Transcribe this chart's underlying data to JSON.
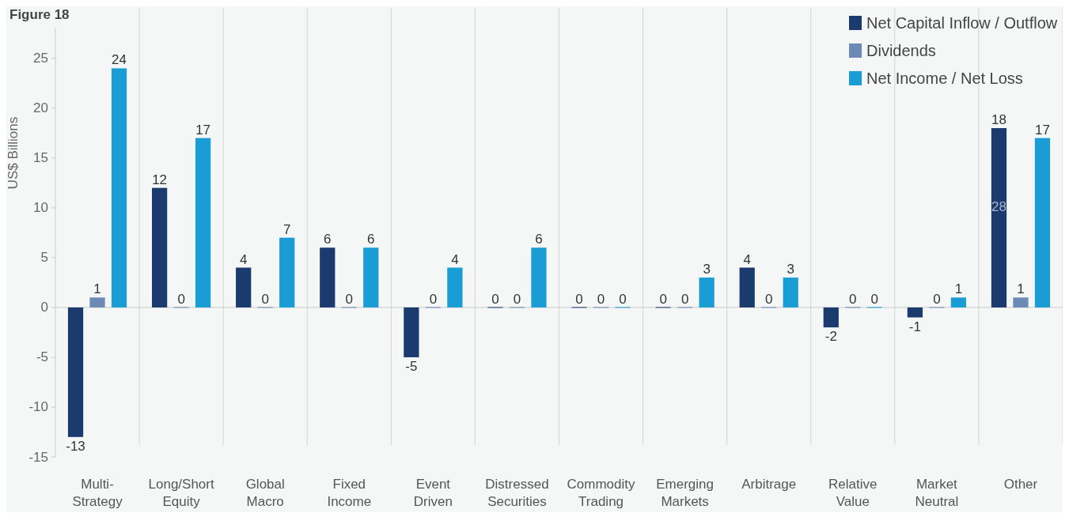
{
  "chart_data": {
    "type": "bar",
    "title": "Figure 18",
    "ylabel": "US$ Billions",
    "categories": [
      "Multi-\nStrategy",
      "Long/Short\nEquity",
      "Global\nMacro",
      "Fixed\nIncome",
      "Event\nDriven",
      "Distressed\nSecurities",
      "Commodity\nTrading",
      "Emerging\nMarkets",
      "Arbitrage",
      "Relative\nValue",
      "Market\nNeutral",
      "Other"
    ],
    "series": [
      {
        "name": "Net Capital Inflow / Outflow",
        "color": "#1b3a6e",
        "values": [
          -13,
          12,
          4,
          6,
          -5,
          0,
          0,
          0,
          4,
          -2,
          -1,
          18
        ]
      },
      {
        "name": "Dividends",
        "color": "#6b8ab5",
        "values": [
          1,
          0,
          0,
          0,
          0,
          0,
          0,
          0,
          0,
          0,
          0,
          1
        ]
      },
      {
        "name": "Net Income / Net Loss",
        "color": "#1a9cd4",
        "values": [
          24,
          17,
          7,
          6,
          4,
          6,
          0,
          3,
          3,
          0,
          1,
          17
        ]
      }
    ],
    "ylim": [
      -15,
      28
    ],
    "yticks": [
      -15,
      -10,
      -5,
      0,
      5,
      10,
      15,
      20,
      25
    ],
    "data_labels": true,
    "legend": "top right",
    "annotations": [
      "28"
    ]
  }
}
